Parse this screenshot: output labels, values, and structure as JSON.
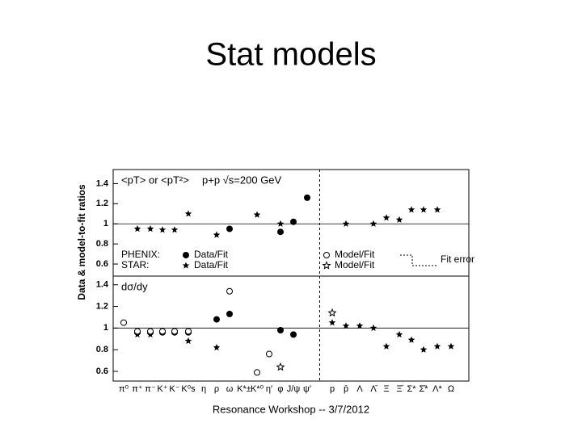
{
  "slide": {
    "title": "Stat models",
    "footer": "Resonance Workshop -- 3/7/2012"
  },
  "chart_data": {
    "type": "scatter",
    "y_label": "Data & model-to-fit ratios",
    "categories": [
      "π⁰",
      "π⁺",
      "π⁻",
      "K⁺",
      "K⁻",
      "K⁰s",
      "η",
      "ρ",
      "ω",
      "K*±",
      "K*⁰",
      "η′",
      "φ",
      "J/ψ",
      "ψ′",
      "p",
      "p̄",
      "Λ",
      "Λ̄",
      "Ξ",
      "Ξ̄",
      "Σ*",
      "Σ̄*",
      "Λ*",
      "Ω"
    ],
    "divider_after": 14,
    "series": [
      {
        "experiment": "PHENIX:",
        "name": "Data/Fit",
        "marker": "circle",
        "color": "#000000"
      },
      {
        "experiment": "STAR:",
        "name": "Data/Fit",
        "marker": "star",
        "color": "#000000"
      },
      {
        "name": "Model/Fit",
        "marker": "open-circle",
        "color": "#000000"
      },
      {
        "name": "Model/Fit",
        "marker": "open-star",
        "color": "#000000"
      }
    ],
    "fit_error_label": "Fit error",
    "panels": [
      {
        "labels": [
          "<pT> or <pT²>",
          "p+p √s=200 GeV"
        ],
        "ylim": [
          0.48,
          1.54
        ],
        "yticks": [
          0.6,
          0.8,
          1.0,
          1.2,
          1.4
        ],
        "ref_line": 1.0,
        "legend": true,
        "values": [
          [
            null,
            null,
            null,
            null,
            null,
            null,
            null,
            null,
            0.95,
            null,
            null,
            null,
            0.92,
            1.02,
            1.26,
            null,
            null,
            null,
            null,
            null,
            null,
            null,
            null,
            null,
            null
          ],
          [
            null,
            0.95,
            0.95,
            0.94,
            0.94,
            1.1,
            null,
            0.89,
            null,
            null,
            1.09,
            null,
            1.0,
            null,
            null,
            null,
            1.0,
            null,
            1.0,
            1.06,
            1.04,
            1.14,
            1.14,
            1.14,
            null
          ]
        ]
      },
      {
        "labels": [
          "dσ/dy"
        ],
        "ylim": [
          0.51,
          1.48
        ],
        "yticks": [
          0.6,
          0.8,
          1.0,
          1.2,
          1.4
        ],
        "ref_line": 1.0,
        "legend": false,
        "values": [
          [
            null,
            0.96,
            0.96,
            0.96,
            0.96,
            0.96,
            null,
            1.08,
            1.13,
            null,
            null,
            null,
            0.98,
            0.94,
            null,
            null,
            null,
            null,
            null,
            null,
            null,
            null,
            null,
            null,
            null
          ],
          [
            null,
            0.94,
            0.94,
            0.96,
            0.97,
            0.88,
            null,
            0.82,
            1.13,
            null,
            null,
            null,
            null,
            null,
            null,
            1.05,
            1.02,
            1.02,
            1.0,
            0.83,
            0.94,
            0.89,
            0.8,
            0.83,
            0.83
          ],
          [
            1.05,
            0.97,
            0.97,
            0.97,
            0.97,
            0.97,
            null,
            null,
            1.34,
            null,
            0.59,
            0.76,
            null,
            null,
            null,
            null,
            null,
            null,
            null,
            null,
            null,
            null,
            null,
            null,
            null
          ],
          [
            null,
            null,
            null,
            null,
            null,
            null,
            null,
            null,
            null,
            null,
            null,
            null,
            0.64,
            null,
            null,
            1.14,
            null,
            null,
            null,
            null,
            null,
            null,
            null,
            null,
            null
          ]
        ]
      }
    ]
  }
}
